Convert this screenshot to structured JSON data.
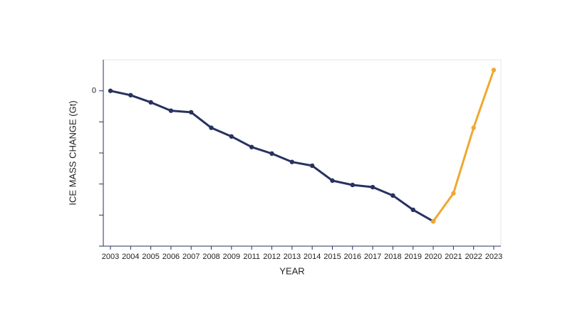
{
  "chart_data": {
    "type": "line",
    "x_label": "YEAR",
    "y_label": "ICE MASS CHANGE (Gt)",
    "categories": [
      "2003",
      "2004",
      "2005",
      "2006",
      "2007",
      "2008",
      "2009",
      "2011",
      "2012",
      "2013",
      "2014",
      "2015",
      "2016",
      "2017",
      "2018",
      "2019",
      "2020",
      "2021",
      "2022",
      "2023"
    ],
    "series": [
      {
        "color": "#27325f",
        "values": [
          0,
          -140,
          -370,
          -640,
          -690,
          -1190,
          -1470,
          -1810,
          -2020,
          -2290,
          -2410,
          -2890,
          -3030,
          -3100,
          -3370,
          -3830,
          -4200,
          null,
          null,
          null
        ]
      },
      {
        "color": "#f0a830",
        "values": [
          null,
          null,
          null,
          null,
          null,
          null,
          null,
          null,
          null,
          null,
          null,
          null,
          null,
          null,
          null,
          null,
          -4200,
          -3300,
          -1190,
          670
        ]
      }
    ],
    "ylim": [
      -5000,
      1000
    ],
    "yticks": [
      0,
      {
        "value": -1000,
        "label": null
      },
      {
        "value": -2000,
        "label": null
      },
      {
        "value": -3000,
        "label": null
      },
      {
        "value": -4000,
        "label": null
      },
      {
        "value": -5000,
        "label": null
      }
    ],
    "grid": false
  }
}
